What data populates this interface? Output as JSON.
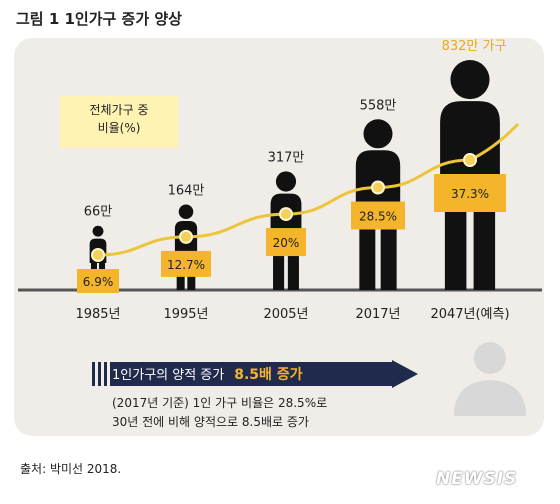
{
  "title": "그림 1  1인가구 증가 양상",
  "legend_lines": [
    "전체가구 중",
    "비율(%)"
  ],
  "chart_data": {
    "type": "line",
    "x": [
      "1985년",
      "1995년",
      "2005년",
      "2017년",
      "2047년(예측)"
    ],
    "series": [
      {
        "values": [
          6.9,
          12.7,
          20,
          28.5,
          37.3
        ]
      }
    ],
    "percent_labels": [
      "6.9%",
      "12.7%",
      "20%",
      "28.5%",
      "37.3%"
    ],
    "household_labels": [
      "66만",
      "164만",
      "317만",
      "558만",
      "832만 가구"
    ],
    "households_10k": [
      66,
      164,
      317,
      558,
      832
    ],
    "ylim": [
      0,
      45
    ],
    "grid": false
  },
  "arrow": {
    "text": "1인가구의 양적 증가",
    "highlight": "8.5배 증가"
  },
  "note_lines": [
    "(2017년 기준) 1인 가구 비율은 28.5%로",
    "30년 전에 비해 양적으로 8.5배로 증가"
  ],
  "source": "출처: 박미선 2018.",
  "watermark": "NEWSIS",
  "colors": {
    "panel": "#f0ede8",
    "label_box": "#f4b52a",
    "curve": "#ecc53a",
    "figure": "#111111",
    "arrow": "#1f2a4d",
    "highlight": "#f4b52a"
  }
}
